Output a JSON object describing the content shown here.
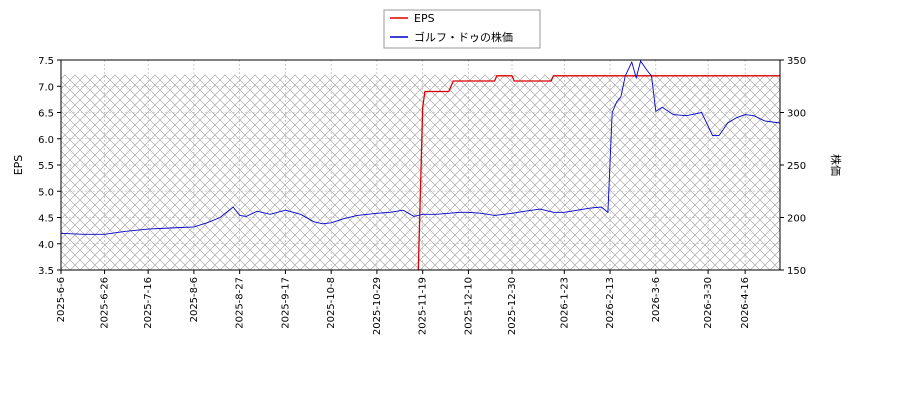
{
  "chart_data": {
    "type": "line",
    "x_tick_labels": [
      "2025-6-6",
      "2025-6-26",
      "2025-7-16",
      "2025-8-6",
      "2025-8-27",
      "2025-9-17",
      "2025-10-8",
      "2025-10-29",
      "2025-11-19",
      "2025-12-10",
      "2025-12-30",
      "2026-1-23",
      "2026-2-13",
      "2026-3-6",
      "2026-3-30",
      "2026-4-16"
    ],
    "x_range": [
      "2025-6-6",
      "2026-5-2"
    ],
    "left_axis": {
      "label": "EPS",
      "ylim": [
        3.5,
        7.5
      ],
      "ticks": [
        "3.5",
        "4.0",
        "4.5",
        "5.0",
        "5.5",
        "6.0",
        "6.5",
        "7.0",
        "7.5"
      ]
    },
    "right_axis": {
      "label": "株価",
      "ylim": [
        150,
        350
      ],
      "ticks": [
        "150",
        "200",
        "250",
        "300",
        "350"
      ]
    },
    "grid": true,
    "legend_position": "top-center",
    "series": [
      {
        "name": "EPS",
        "axis": "left",
        "color": "#dd0000",
        "points": [
          [
            "2025-11-17",
            3.5
          ],
          [
            "2025-11-19",
            6.6
          ],
          [
            "2025-11-20",
            6.9
          ],
          [
            "2025-12-01",
            6.9
          ],
          [
            "2025-12-03",
            7.1
          ],
          [
            "2025-12-22",
            7.1
          ],
          [
            "2025-12-23",
            7.2
          ],
          [
            "2025-12-30",
            7.2
          ],
          [
            "2025-12-31",
            7.1
          ],
          [
            "2026-1-17",
            7.1
          ],
          [
            "2026-1-18",
            7.2
          ],
          [
            "2026-5-2",
            7.2
          ]
        ]
      },
      {
        "name": "ゴルフ・ドゥの株価",
        "axis": "right",
        "color": "#0000cc",
        "points": [
          [
            "2025-6-6",
            185
          ],
          [
            "2025-6-16",
            184
          ],
          [
            "2025-6-26",
            184
          ],
          [
            "2025-7-6",
            187
          ],
          [
            "2025-7-16",
            189
          ],
          [
            "2025-7-26",
            190
          ],
          [
            "2025-8-6",
            191
          ],
          [
            "2025-8-12",
            195
          ],
          [
            "2025-8-18",
            200
          ],
          [
            "2025-8-24",
            210
          ],
          [
            "2025-8-27",
            202
          ],
          [
            "2025-8-30",
            201
          ],
          [
            "2025-9-4",
            206
          ],
          [
            "2025-9-10",
            203
          ],
          [
            "2025-9-17",
            207
          ],
          [
            "2025-9-24",
            203
          ],
          [
            "2025-9-30",
            196
          ],
          [
            "2025-10-4",
            194
          ],
          [
            "2025-10-8",
            195
          ],
          [
            "2025-10-14",
            199
          ],
          [
            "2025-10-20",
            202
          ],
          [
            "2025-10-29",
            204
          ],
          [
            "2025-11-4",
            205
          ],
          [
            "2025-11-10",
            207
          ],
          [
            "2025-11-15",
            201
          ],
          [
            "2025-11-19",
            203
          ],
          [
            "2025-11-25",
            203
          ],
          [
            "2025-12-1",
            204
          ],
          [
            "2025-12-6",
            205
          ],
          [
            "2025-12-10",
            205
          ],
          [
            "2025-12-16",
            204
          ],
          [
            "2025-12-22",
            202
          ],
          [
            "2025-12-30",
            204
          ],
          [
            "2026-1-5",
            206
          ],
          [
            "2026-1-12",
            208
          ],
          [
            "2026-1-18",
            205
          ],
          [
            "2026-1-23",
            205
          ],
          [
            "2026-1-29",
            207
          ],
          [
            "2026-2-4",
            209
          ],
          [
            "2026-2-9",
            210
          ],
          [
            "2026-2-12",
            205
          ],
          [
            "2026-2-14",
            300
          ],
          [
            "2026-2-16",
            310
          ],
          [
            "2026-2-18",
            315
          ],
          [
            "2026-2-20",
            335
          ],
          [
            "2026-2-23",
            348
          ],
          [
            "2026-2-25",
            333
          ],
          [
            "2026-2-27",
            349
          ],
          [
            "2026-3-2",
            340
          ],
          [
            "2026-3-4",
            335
          ],
          [
            "2026-3-6",
            301
          ],
          [
            "2026-3-9",
            305
          ],
          [
            "2026-3-14",
            298
          ],
          [
            "2026-3-20",
            297
          ],
          [
            "2026-3-27",
            300
          ],
          [
            "2026-3-30",
            287
          ],
          [
            "2026-4-1",
            278
          ],
          [
            "2026-4-4",
            278
          ],
          [
            "2026-4-8",
            290
          ],
          [
            "2026-4-12",
            295
          ],
          [
            "2026-4-16",
            298
          ],
          [
            "2026-4-20",
            297
          ],
          [
            "2026-4-25",
            292
          ],
          [
            "2026-5-2",
            290
          ]
        ]
      }
    ]
  }
}
